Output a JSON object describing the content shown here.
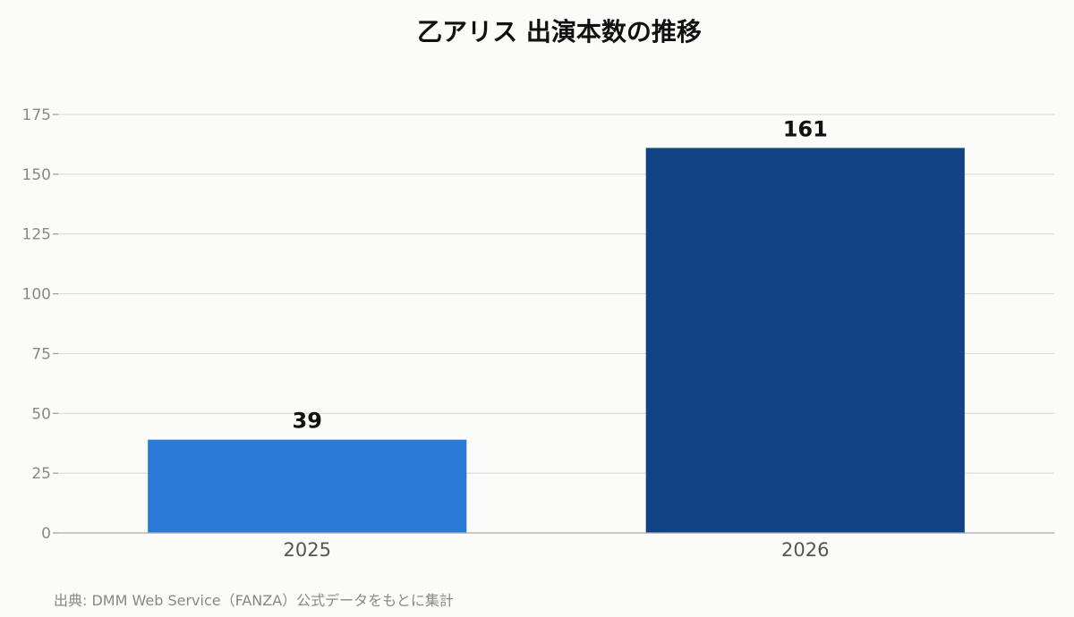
{
  "chart_data": {
    "type": "bar",
    "title": "乙アリス 出演本数の推移",
    "categories": [
      "2025",
      "2026"
    ],
    "values": [
      39,
      161
    ],
    "bar_colors": [
      "#2b7ad8",
      "#104284"
    ],
    "ylim": [
      0,
      175
    ],
    "yticks": [
      0,
      25,
      50,
      75,
      100,
      125,
      150,
      175
    ],
    "grid": true,
    "xlabel": "",
    "ylabel": ""
  },
  "source_note": "出典: DMM Web Service（FANZA）公式データをもとに集計"
}
